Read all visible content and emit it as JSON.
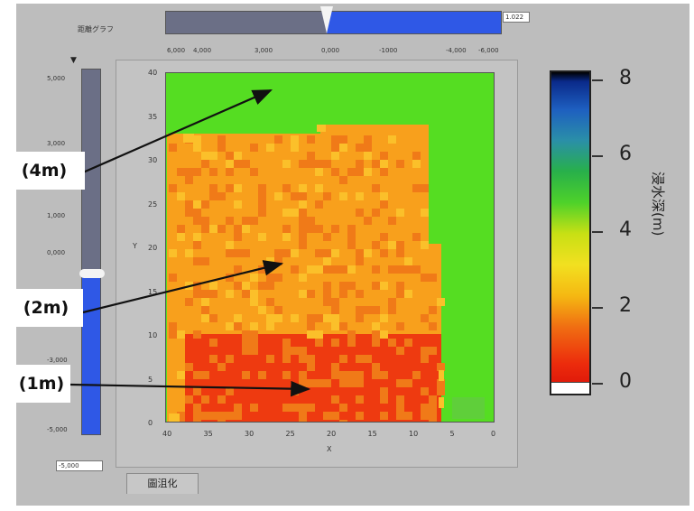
{
  "window": {
    "title_label": "距離グラフ"
  },
  "horizontal_slider": {
    "value_box": "1.022",
    "fill_fraction": 0.52,
    "thumb_fraction": 0.48,
    "ticks": [
      "6,000",
      "4,000",
      "3,000",
      "0,000",
      "-1000",
      "-4,000",
      "-6,000"
    ]
  },
  "vertical_slider": {
    "value_box": "-5,000",
    "fill_fraction": 0.44,
    "thumb_fraction": 0.44,
    "ticks": [
      "5,000",
      "3,000",
      "1,000",
      "0,000",
      "-3,000",
      "-5,000"
    ]
  },
  "plot": {
    "y_ticks": [
      "40",
      "35",
      "30",
      "25",
      "20",
      "15",
      "10",
      "5",
      "0"
    ],
    "x_ticks": [
      "40",
      "35",
      "30",
      "25",
      "20",
      "15",
      "10",
      "5",
      "0"
    ],
    "y_axis_label": "Y",
    "x_axis_label": "X",
    "colors": {
      "background": "#55dd22",
      "level_4m": "#55dd22",
      "level_2m": "#f8a01c",
      "level_1m": "#ee3a10",
      "noise_a": "#f07a18",
      "noise_b": "#fbc02a"
    }
  },
  "colorbar": {
    "ticks": [
      "8",
      "6",
      "4",
      "2",
      "0"
    ],
    "label": "浸水深(m)"
  },
  "callouts": {
    "a": "(4m)",
    "b": "(2m)",
    "c": "(1m)"
  },
  "tab": {
    "label": "圖沮化"
  }
}
